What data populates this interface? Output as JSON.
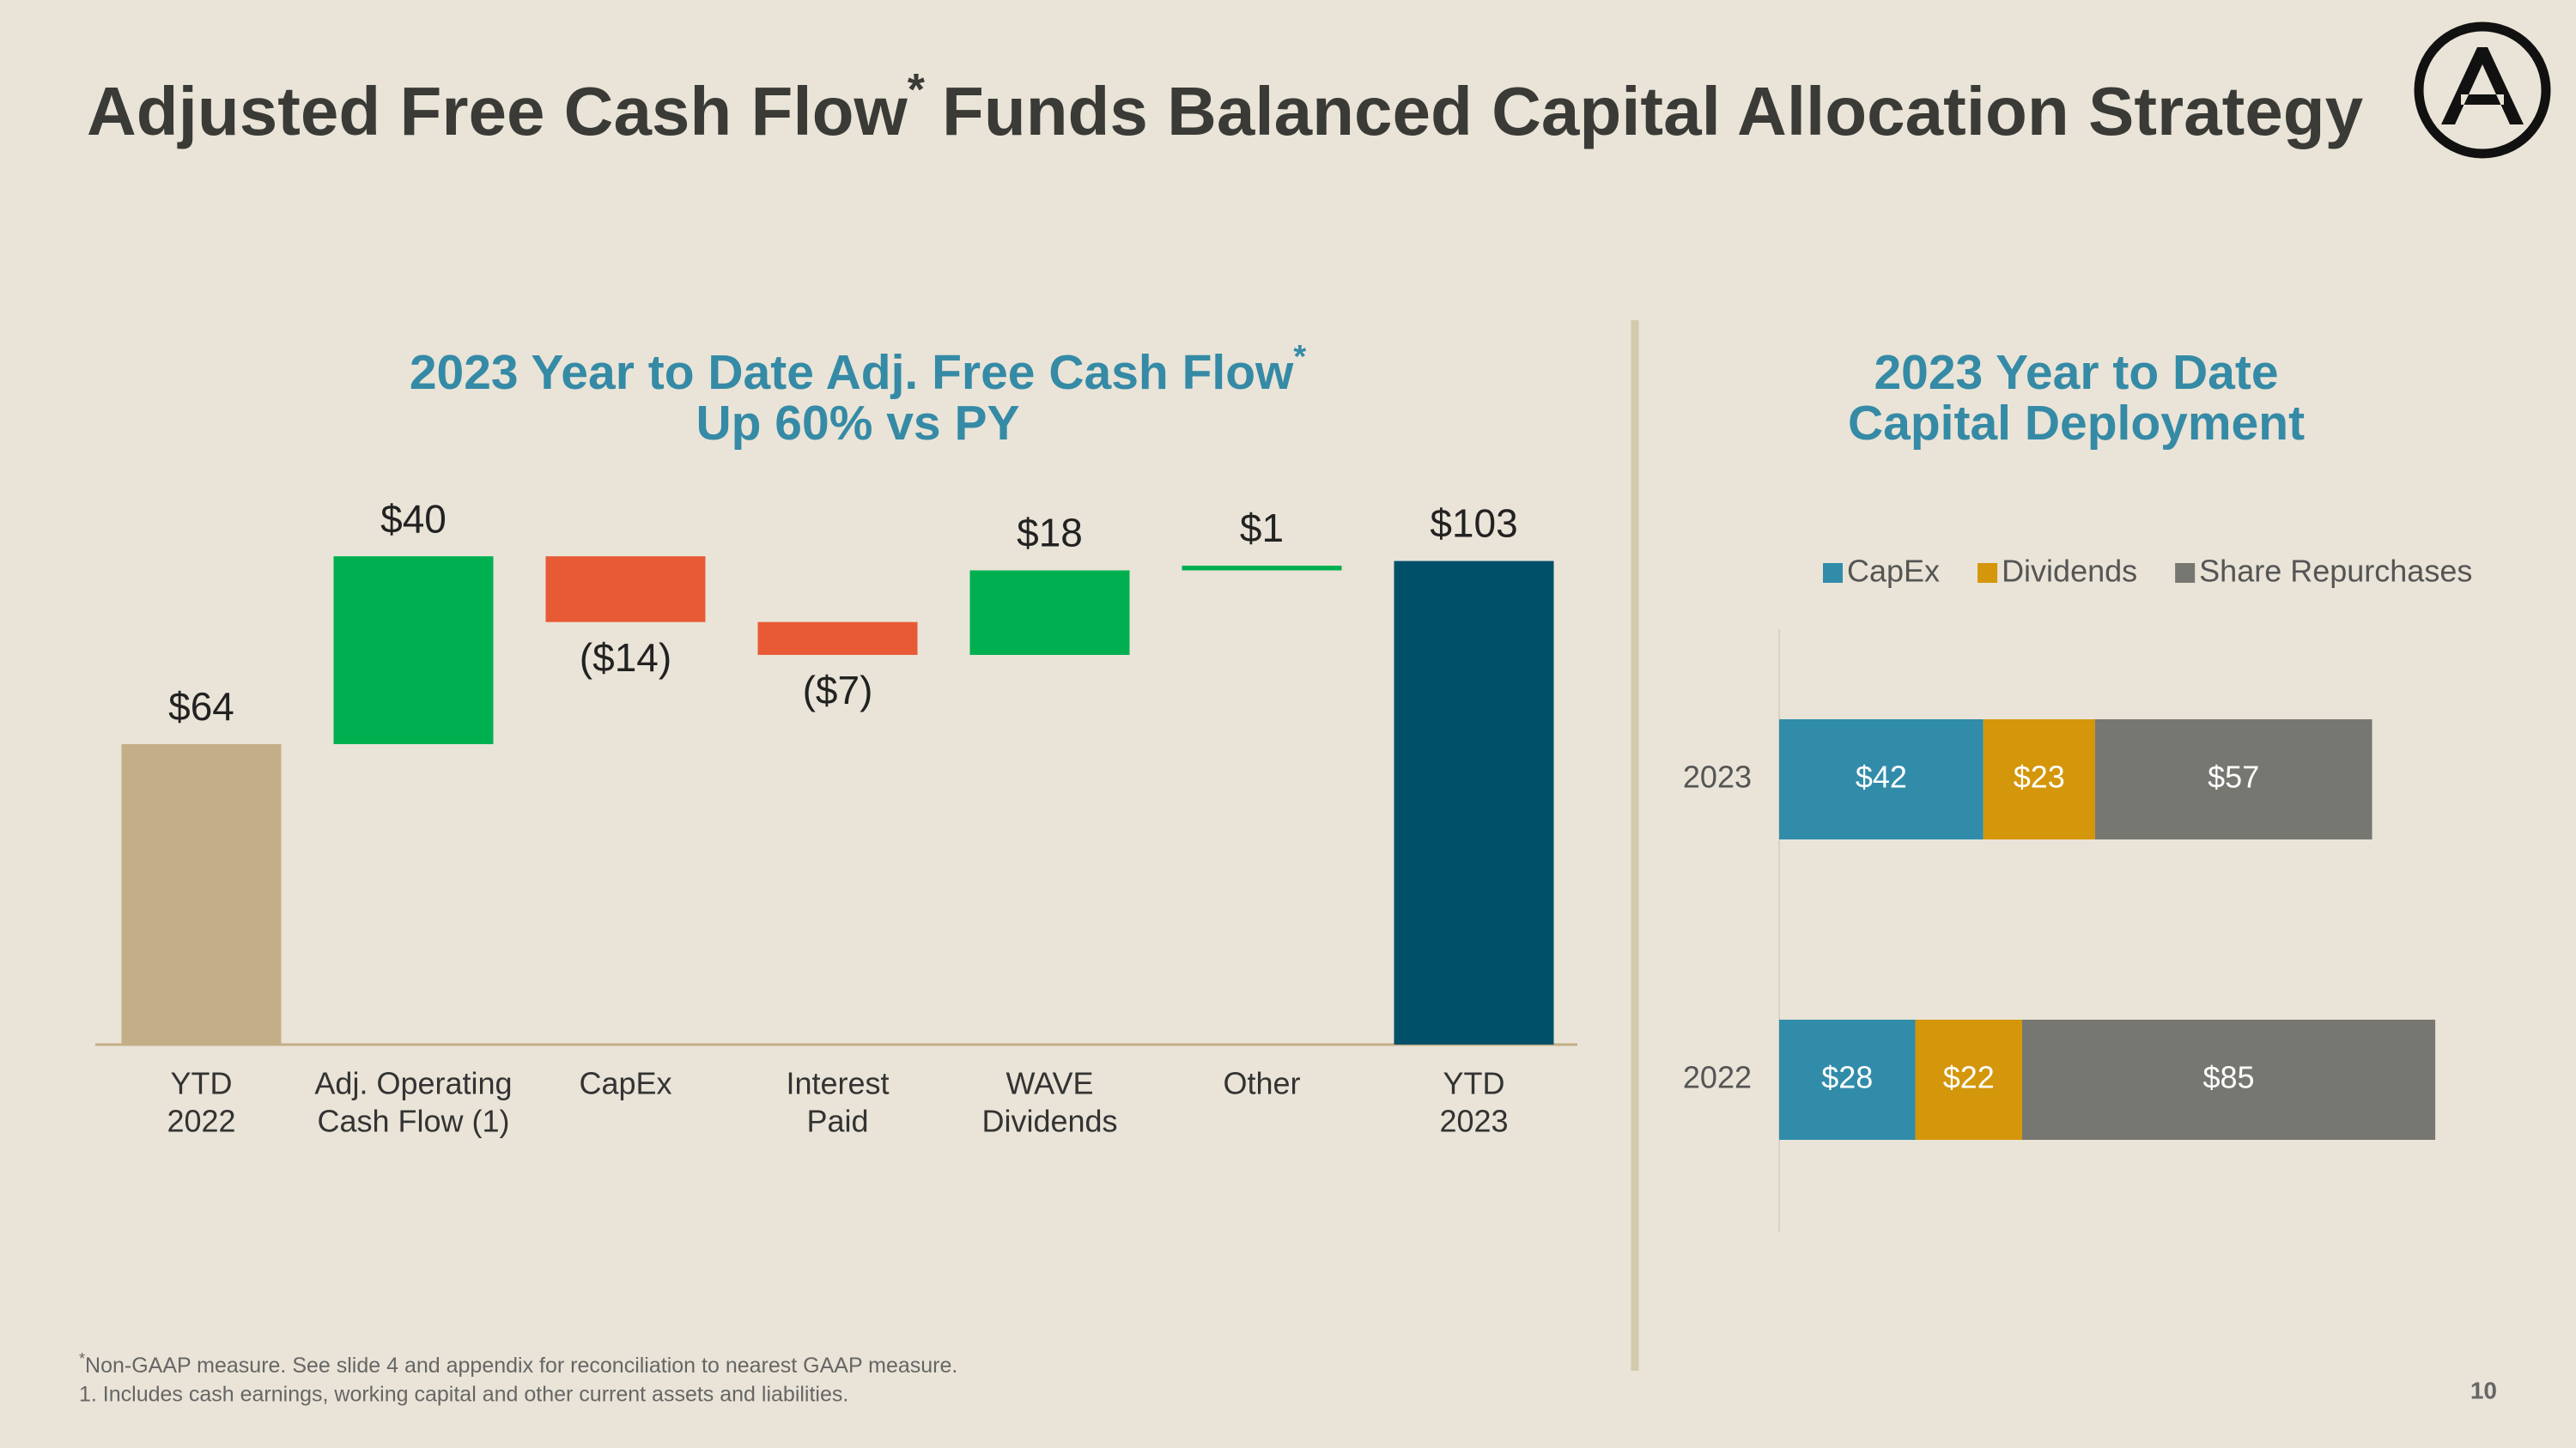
{
  "header": {
    "title": "Adjusted Free Cash Flow",
    "title_mark": "*",
    "title_rest": "Funds Balanced Capital Allocation Strategy"
  },
  "chart_data": [
    {
      "type": "waterfall",
      "title": [
        "2023 Year to Date Adj. Free Cash Flow",
        "Up 60% vs PY"
      ],
      "title_mark": "*",
      "categories": [
        [
          "YTD",
          "2022"
        ],
        [
          "Adj. Operating",
          "Cash Flow (1)"
        ],
        [
          "CapEx"
        ],
        [
          "Interest",
          "Paid"
        ],
        [
          "WAVE",
          "Dividends"
        ],
        [
          "Other"
        ],
        [
          "YTD",
          "2023"
        ]
      ],
      "measure": [
        "total",
        "relative",
        "relative",
        "relative",
        "relative",
        "relative",
        "total"
      ],
      "values": [
        64,
        40,
        -14,
        -7,
        18,
        1,
        103
      ],
      "value_labels": [
        "$64",
        "$40",
        "($14)",
        "($7)",
        "$18",
        "$1",
        "$103"
      ],
      "colors": [
        "#c3ae88",
        "#00b050",
        "#e85a35",
        "#e85a35",
        "#00b050",
        "#00b050",
        "#00506a"
      ]
    },
    {
      "type": "stacked-hbar",
      "title": [
        "2023 Year to Date",
        "Capital Deployment"
      ],
      "categories": [
        "2023",
        "2022"
      ],
      "legend": "top",
      "series": [
        {
          "name": "CapEx",
          "color": "#318caa",
          "values": [
            42,
            28
          ],
          "value_labels": [
            "$42",
            "$28"
          ]
        },
        {
          "name": "Dividends",
          "color": "#d4960a",
          "values": [
            23,
            22
          ],
          "value_labels": [
            "$23",
            "$22"
          ]
        },
        {
          "name": "Share Repurchases",
          "color": "#777772",
          "values": [
            57,
            85
          ],
          "value_labels": [
            "$57",
            "$85"
          ]
        }
      ]
    }
  ],
  "footer": {
    "note_mark": "*",
    "note": "Non-GAAP measure. See slide 4 and appendix for reconciliation to nearest GAAP measure.",
    "note2": "1. Includes cash earnings, working capital and other current assets and liabilities.",
    "page": "10"
  }
}
